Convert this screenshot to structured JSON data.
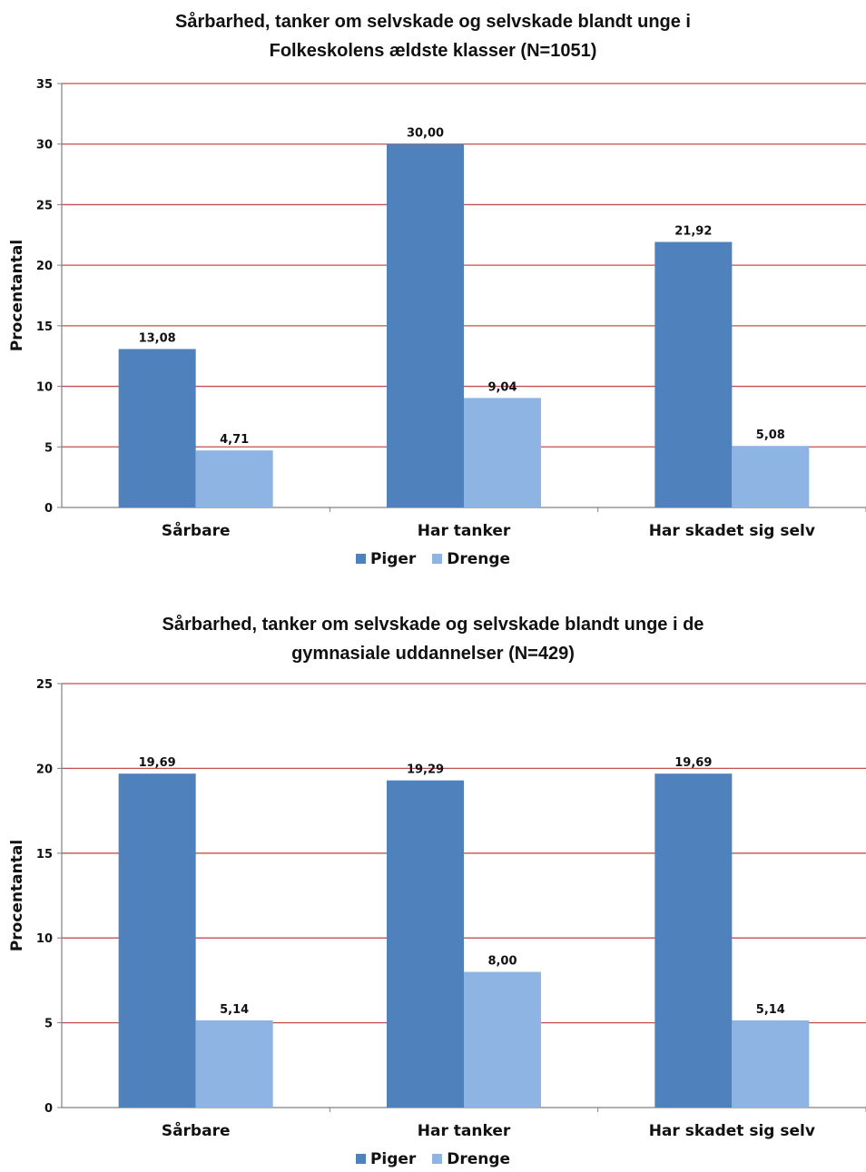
{
  "chart_data": [
    {
      "type": "bar",
      "title_line1": "Sårbarhed, tanker om selvskade og selvskade blandt unge i",
      "title_line2": "Folkeskolens ældste klasser (N=1051)",
      "ylabel": "Procentantal",
      "xlabel": "",
      "ylim": [
        0,
        35
      ],
      "yticks": [
        0,
        5,
        10,
        15,
        20,
        25,
        30,
        35
      ],
      "categories": [
        "Sårbare",
        "Har tanker",
        "Har skadet sig selv"
      ],
      "series": [
        {
          "name": "Piger",
          "color": "#4F81BD",
          "values": [
            13.08,
            30.0,
            21.92
          ],
          "labels": [
            "13,08",
            "30,00",
            "21,92"
          ]
        },
        {
          "name": "Drenge",
          "color": "#8EB4E3",
          "values": [
            4.71,
            9.04,
            5.08
          ],
          "labels": [
            "4,71",
            "9,04",
            "5,08"
          ]
        }
      ],
      "grid": true,
      "grid_color": "#C0504D",
      "legend": "bottom"
    },
    {
      "type": "bar",
      "title_line1": "Sårbarhed, tanker om selvskade og selvskade  blandt unge i de",
      "title_line2": "gymnasiale uddannelser (N=429)",
      "ylabel": "Procentantal",
      "xlabel": "",
      "ylim": [
        0,
        25
      ],
      "yticks": [
        0,
        5,
        10,
        15,
        20,
        25
      ],
      "categories": [
        "Sårbare",
        "Har tanker",
        "Har skadet sig selv"
      ],
      "series": [
        {
          "name": "Piger",
          "color": "#4F81BD",
          "values": [
            19.69,
            19.29,
            19.69
          ],
          "labels": [
            "19,69",
            "19,29",
            "19,69"
          ]
        },
        {
          "name": "Drenge",
          "color": "#8EB4E3",
          "values": [
            5.14,
            8.0,
            5.14
          ],
          "labels": [
            "5,14",
            "8,00",
            "5,14"
          ]
        }
      ],
      "grid": true,
      "grid_color": "#C0504D",
      "legend": "bottom"
    }
  ]
}
